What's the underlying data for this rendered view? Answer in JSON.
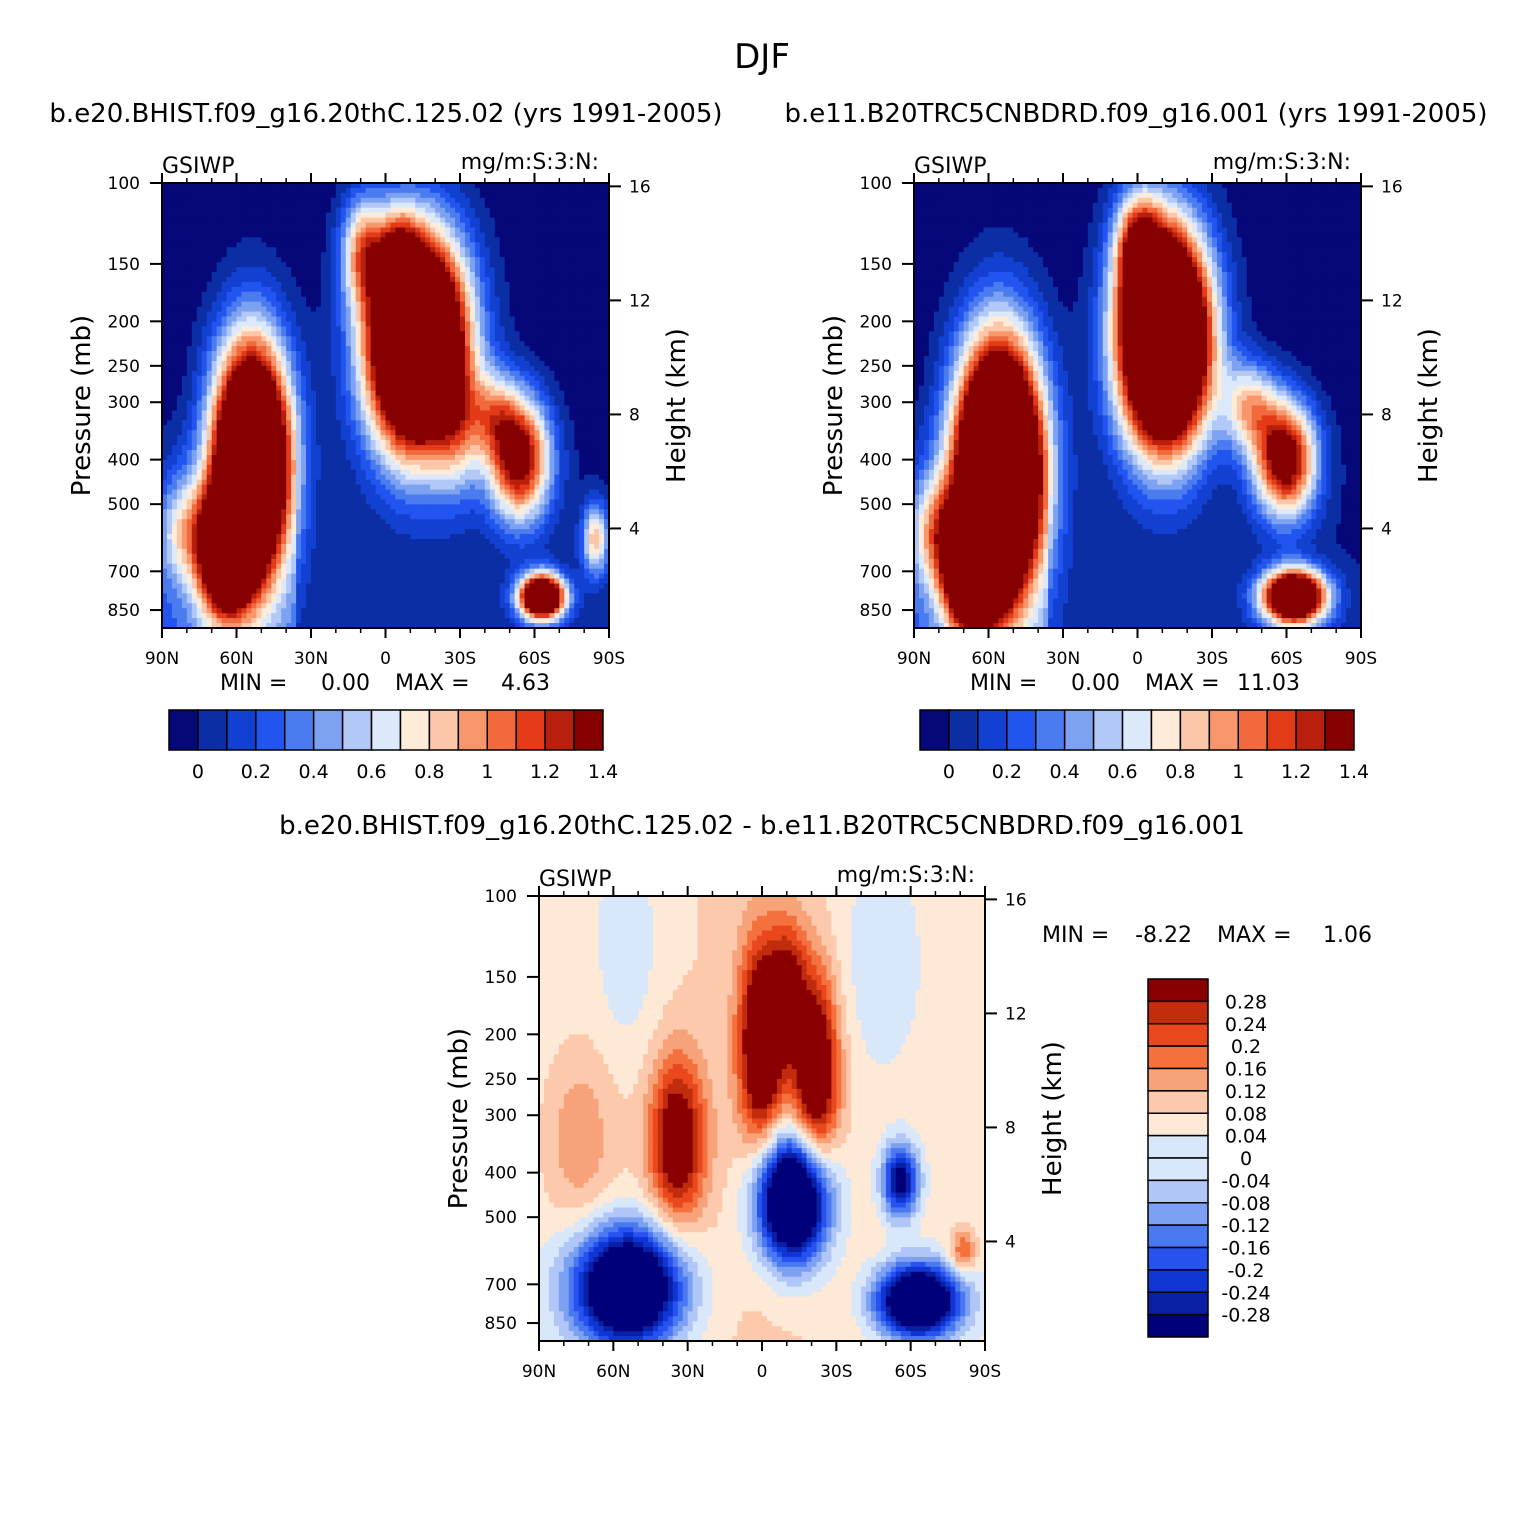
{
  "title": "DJF",
  "colors": {
    "abs_palette": [
      "#06087a",
      "#0c2ea4",
      "#1240d0",
      "#2255f0",
      "#4a7cf0",
      "#7ea2f2",
      "#b2c8f6",
      "#dce9fb",
      "#feebd8",
      "#fcc7a8",
      "#f8976b",
      "#f16a3e",
      "#e33a17",
      "#b81f0c",
      "#870000"
    ],
    "diff_palette": [
      "#00007a",
      "#0a20a4",
      "#0f36d4",
      "#2852f0",
      "#4a78f0",
      "#7ca0f2",
      "#b0c6f6",
      "#d8e8fa",
      "#fde9d6",
      "#fcc9ad",
      "#f8a27a",
      "#f4703c",
      "#e8481c",
      "#c02c0c",
      "#8a0000"
    ]
  },
  "chart_data": [
    {
      "type": "heatmap",
      "title": "b.e20.BHIST.f09_g16.20thC.125.02 (yrs 1991-2005)",
      "corner_left": "GSIWP",
      "corner_right": "mg/m:S:3:N:",
      "ylabel": "Pressure (mb)",
      "ylabel_right": "Height (km)",
      "x_ticks": [
        "90N",
        "60N",
        "30N",
        "0",
        "30S",
        "60S",
        "90S"
      ],
      "y_ticks": [
        "100",
        "150",
        "200",
        "250",
        "300",
        "400",
        "500",
        "700",
        "850"
      ],
      "y_ticks_right": [
        "16",
        "12",
        "8",
        "4"
      ],
      "min_label": "MIN =",
      "min_value": "0.00",
      "max_label": "MAX =",
      "max_value": "4.63",
      "colorbar_labels": [
        "0",
        "0.2",
        "0.4",
        "0.6",
        "0.8",
        "1",
        "1.2",
        "1.4"
      ],
      "field_levels": [
        0,
        0.1,
        0.2,
        0.3,
        0.4,
        0.5,
        0.6,
        0.7,
        0.8,
        0.9,
        1.0,
        1.1,
        1.2,
        1.3,
        1.4
      ]
    },
    {
      "type": "heatmap",
      "title": "b.e11.B20TRC5CNBDRD.f09_g16.001 (yrs 1991-2005)",
      "corner_left": "GSIWP",
      "corner_right": "mg/m:S:3:N:",
      "ylabel": "Pressure (mb)",
      "ylabel_right": "Height (km)",
      "x_ticks": [
        "90N",
        "60N",
        "30N",
        "0",
        "30S",
        "60S",
        "90S"
      ],
      "y_ticks": [
        "100",
        "150",
        "200",
        "250",
        "300",
        "400",
        "500",
        "700",
        "850"
      ],
      "y_ticks_right": [
        "16",
        "12",
        "8",
        "4"
      ],
      "min_label": "MIN =",
      "min_value": "0.00",
      "max_label": "MAX =",
      "max_value": "11.03",
      "colorbar_labels": [
        "0",
        "0.2",
        "0.4",
        "0.6",
        "0.8",
        "1",
        "1.2",
        "1.4"
      ],
      "field_levels": [
        0,
        0.1,
        0.2,
        0.3,
        0.4,
        0.5,
        0.6,
        0.7,
        0.8,
        0.9,
        1.0,
        1.1,
        1.2,
        1.3,
        1.4
      ]
    },
    {
      "type": "heatmap",
      "title": "b.e20.BHIST.f09_g16.20thC.125.02 - b.e11.B20TRC5CNBDRD.f09_g16.001",
      "corner_left": "GSIWP",
      "corner_right": "mg/m:S:3:N:",
      "ylabel": "Pressure (mb)",
      "ylabel_right": "Height (km)",
      "x_ticks": [
        "90N",
        "60N",
        "30N",
        "0",
        "30S",
        "60S",
        "90S"
      ],
      "y_ticks": [
        "100",
        "150",
        "200",
        "250",
        "300",
        "400",
        "500",
        "700",
        "850"
      ],
      "y_ticks_right": [
        "16",
        "12",
        "8",
        "4"
      ],
      "min_label": "MIN =",
      "min_value": "-8.22",
      "max_label": "MAX =",
      "max_value": "1.06",
      "colorbar_labels": [
        "0.28",
        "0.24",
        "0.2",
        "0.16",
        "0.12",
        "0.08",
        "0.04",
        "0",
        "-0.04",
        "-0.08",
        "-0.12",
        "-0.16",
        "-0.2",
        "-0.24",
        "-0.28"
      ],
      "field_levels": [
        -0.28,
        -0.24,
        -0.2,
        -0.16,
        -0.12,
        -0.08,
        -0.04,
        0,
        0.04,
        0.08,
        0.12,
        0.16,
        0.2,
        0.24,
        0.28
      ]
    }
  ]
}
